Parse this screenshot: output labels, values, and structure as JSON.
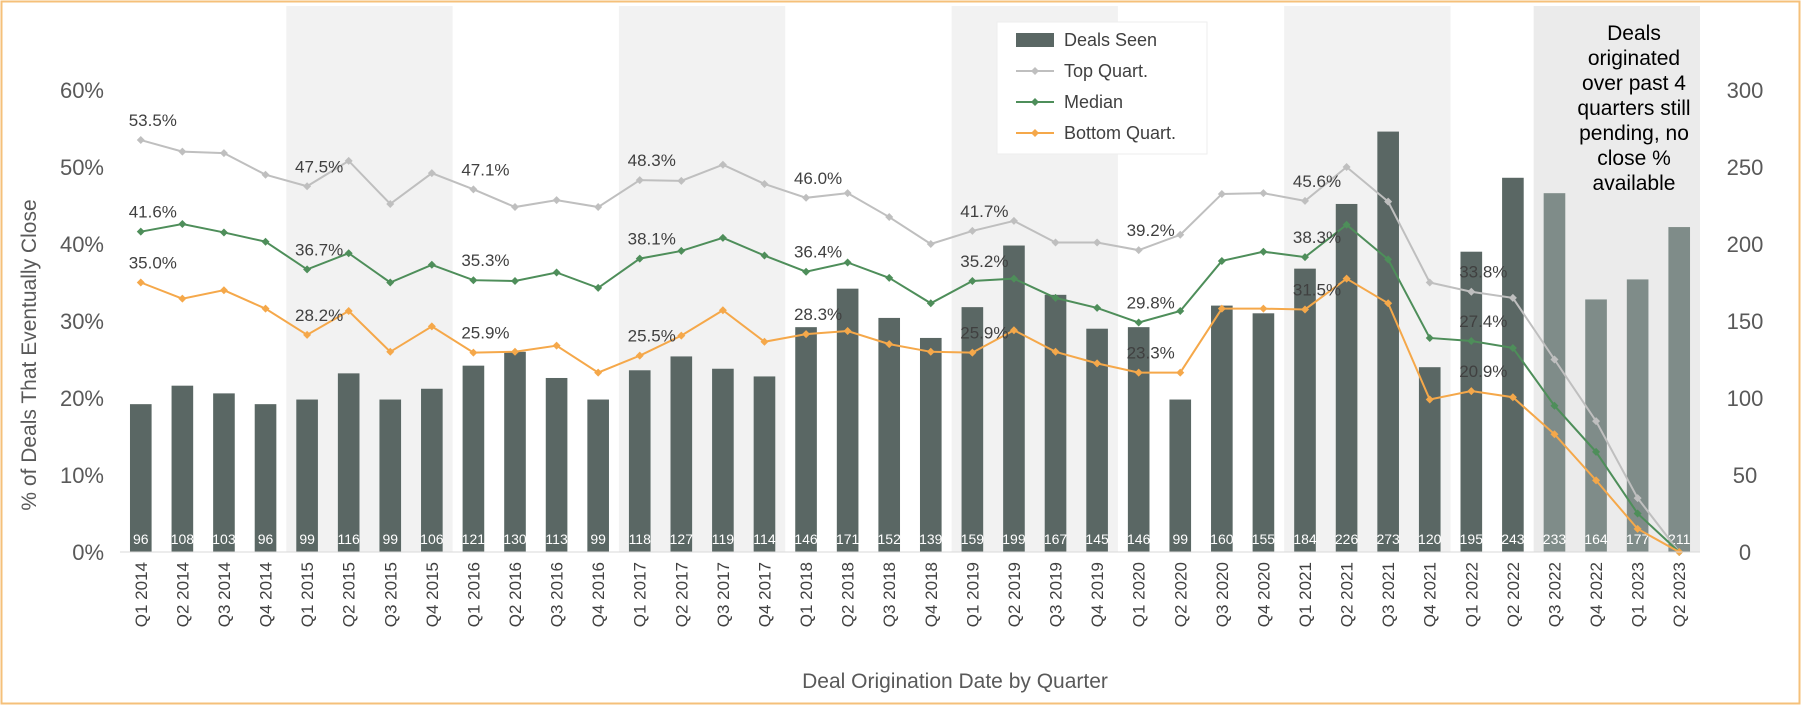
{
  "chart_data": {
    "type": "bar+line",
    "xlabel": "Deal Origination Date by Quarter",
    "ylabel": "% of Deals That Eventually Close",
    "y_left": {
      "ticks": [
        "0%",
        "10%",
        "20%",
        "30%",
        "40%",
        "50%",
        "60%"
      ],
      "range": [
        0,
        60
      ]
    },
    "y_right": {
      "ticks": [
        "0",
        "50",
        "100",
        "150",
        "200",
        "250",
        "300"
      ],
      "range": [
        0,
        300
      ]
    },
    "categories": [
      "Q1 2014",
      "Q2 2014",
      "Q3 2014",
      "Q4 2014",
      "Q1 2015",
      "Q2 2015",
      "Q3 2015",
      "Q4 2015",
      "Q1 2016",
      "Q2 2016",
      "Q3 2016",
      "Q4 2016",
      "Q1 2017",
      "Q2 2017",
      "Q3 2017",
      "Q4 2017",
      "Q1 2018",
      "Q2 2018",
      "Q3 2018",
      "Q4 2018",
      "Q1 2019",
      "Q2 2019",
      "Q3 2019",
      "Q4 2019",
      "Q1 2020",
      "Q2 2020",
      "Q3 2020",
      "Q4 2020",
      "Q1 2021",
      "Q2 2021",
      "Q3 2021",
      "Q4 2021",
      "Q1 2022",
      "Q2 2022",
      "Q3 2022",
      "Q4 2022",
      "Q1 2023",
      "Q2 2023"
    ],
    "bars": {
      "name": "Deals Seen",
      "axis": "right",
      "color": "#5a6764",
      "pending_color": "#7f8c89",
      "values": [
        96,
        108,
        103,
        96,
        99,
        116,
        99,
        106,
        121,
        130,
        113,
        99,
        118,
        127,
        119,
        114,
        146,
        171,
        152,
        139,
        159,
        199,
        167,
        145,
        146,
        99,
        160,
        155,
        184,
        226,
        273,
        120,
        195,
        243,
        233,
        164,
        177,
        211
      ]
    },
    "series": [
      {
        "name": "Top Quart.",
        "color": "#bfbfbf",
        "values": [
          53.5,
          52.0,
          51.8,
          49.0,
          47.5,
          50.8,
          45.2,
          49.2,
          47.1,
          44.8,
          45.7,
          44.8,
          48.3,
          48.2,
          50.3,
          47.8,
          46.0,
          46.6,
          43.5,
          40.0,
          41.7,
          43.0,
          40.2,
          40.2,
          39.2,
          41.2,
          46.5,
          46.6,
          45.6,
          50.0,
          45.5,
          35.0,
          33.8,
          33.0,
          25.0,
          17.0,
          7.0,
          0
        ]
      },
      {
        "name": "Median",
        "color": "#4e8e5a",
        "values": [
          41.6,
          42.6,
          41.5,
          40.3,
          36.7,
          38.8,
          35.0,
          37.3,
          35.3,
          35.2,
          36.3,
          34.3,
          38.1,
          39.1,
          40.8,
          38.5,
          36.4,
          37.6,
          35.6,
          32.3,
          35.2,
          35.5,
          33.0,
          31.7,
          29.8,
          31.3,
          37.8,
          39.0,
          38.3,
          42.5,
          38.0,
          27.8,
          27.4,
          26.5,
          19.0,
          13.0,
          5.0,
          0
        ]
      },
      {
        "name": "Bottom Quart.",
        "color": "#f5a84a",
        "values": [
          35.0,
          32.9,
          34.0,
          31.6,
          28.2,
          31.3,
          26.0,
          29.3,
          25.9,
          26.0,
          26.8,
          23.3,
          25.5,
          28.1,
          31.4,
          27.3,
          28.3,
          28.7,
          27.0,
          26.0,
          25.9,
          28.8,
          26.0,
          24.5,
          23.3,
          23.3,
          31.6,
          31.6,
          31.5,
          35.5,
          32.3,
          19.8,
          20.9,
          20.1,
          15.3,
          9.3,
          3.0,
          0
        ]
      }
    ],
    "point_labels": [
      {
        "series": 0,
        "index": 0,
        "text": "53.5%"
      },
      {
        "series": 0,
        "index": 4,
        "text": "47.5%"
      },
      {
        "series": 0,
        "index": 8,
        "text": "47.1%"
      },
      {
        "series": 0,
        "index": 12,
        "text": "48.3%"
      },
      {
        "series": 0,
        "index": 16,
        "text": "46.0%"
      },
      {
        "series": 0,
        "index": 20,
        "text": "41.7%"
      },
      {
        "series": 0,
        "index": 24,
        "text": "39.2%"
      },
      {
        "series": 0,
        "index": 28,
        "text": "45.6%"
      },
      {
        "series": 0,
        "index": 32,
        "text": "33.8%"
      },
      {
        "series": 1,
        "index": 0,
        "text": "41.6%"
      },
      {
        "series": 1,
        "index": 4,
        "text": "36.7%"
      },
      {
        "series": 1,
        "index": 8,
        "text": "35.3%"
      },
      {
        "series": 1,
        "index": 12,
        "text": "38.1%"
      },
      {
        "series": 1,
        "index": 16,
        "text": "36.4%"
      },
      {
        "series": 1,
        "index": 20,
        "text": "35.2%"
      },
      {
        "series": 1,
        "index": 24,
        "text": "29.8%"
      },
      {
        "series": 1,
        "index": 28,
        "text": "38.3%"
      },
      {
        "series": 1,
        "index": 32,
        "text": "27.4%"
      },
      {
        "series": 2,
        "index": 0,
        "text": "35.0%"
      },
      {
        "series": 2,
        "index": 4,
        "text": "28.2%"
      },
      {
        "series": 2,
        "index": 8,
        "text": "25.9%"
      },
      {
        "series": 2,
        "index": 12,
        "text": "25.5%"
      },
      {
        "series": 2,
        "index": 16,
        "text": "28.3%"
      },
      {
        "series": 2,
        "index": 20,
        "text": "25.9%"
      },
      {
        "series": 2,
        "index": 24,
        "text": "23.3%"
      },
      {
        "series": 2,
        "index": 28,
        "text": "31.5%"
      },
      {
        "series": 2,
        "index": 32,
        "text": "20.9%"
      }
    ],
    "shaded_years": [
      2015,
      2017,
      2019,
      2021
    ],
    "pending_categories": [
      "Q3 2022",
      "Q4 2022",
      "Q1 2023",
      "Q2 2023"
    ],
    "annotation": [
      "Deals",
      "originated",
      "over past 4",
      "quarters still",
      "pending, no",
      "close %",
      "available"
    ],
    "legend": {
      "placement": "top-center",
      "entries": [
        "Deals Seen",
        "Top Quart.",
        "Median",
        "Bottom Quart."
      ]
    },
    "grid": false,
    "frame_color": "#f5c07a"
  }
}
